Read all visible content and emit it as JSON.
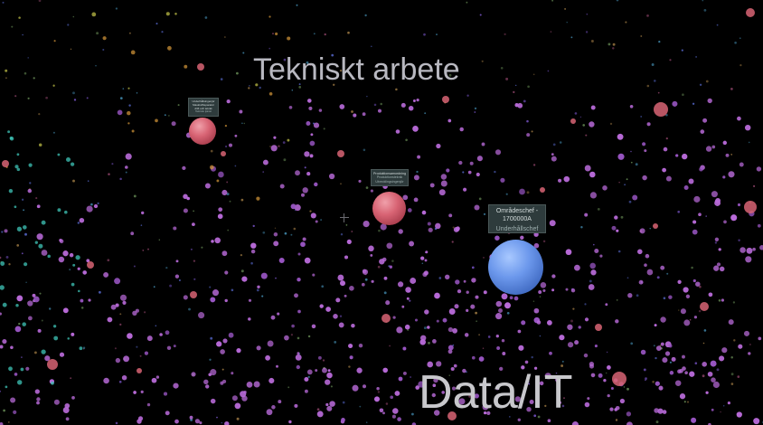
{
  "clusters": {
    "tekniskt": "Tekniskt arbete",
    "datait": "Data/IT"
  },
  "nodes": {
    "node1": {
      "line1": "Underhållsingenjör",
      "line2": "Maskin/Reparatör",
      "line3": "drift och teknik",
      "sub": "Teknisk tjänst"
    },
    "node2": {
      "line1": "Produktionsamordning",
      "sub1": "Produktionsteknik",
      "sub2": "Utvecklingsingenjör"
    },
    "node3": {
      "line1": "Områdeschef -",
      "line2": "1700000A",
      "sub": "Underhållschef"
    }
  },
  "colors": {
    "background": "#000000",
    "it_node": "#6c98ec",
    "technical_node": "#d86474",
    "job_dot": "#b86ad8",
    "tooltip_bg": "#2e3b3c"
  }
}
